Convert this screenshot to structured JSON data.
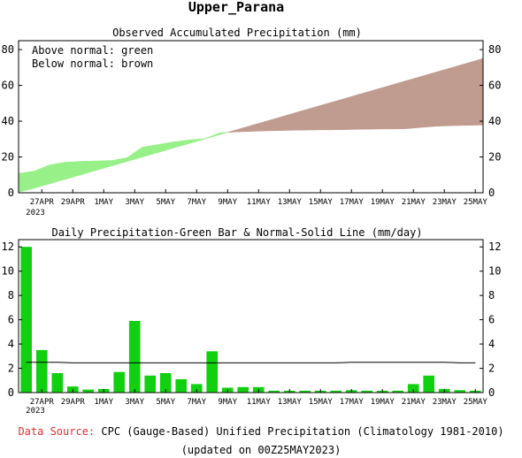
{
  "region_title": "Upper_Parana",
  "colors": {
    "above_normal": "#98f088",
    "below_normal": "#c09c90",
    "daily_bar": "#10d010",
    "normal_line": "#000000",
    "source_label": "#e03030"
  },
  "chart_data": [
    {
      "type": "area",
      "title": "Observed Accumulated Precipitation (mm)",
      "legend": [
        "Above normal: green",
        "Below normal: brown"
      ],
      "legend_position": "top-left",
      "grid": false,
      "x_tick_labels": [
        "27APR",
        "29APR",
        "1MAY",
        "3MAY",
        "5MAY",
        "7MAY",
        "9MAY",
        "11MAY",
        "13MAY",
        "15MAY",
        "17MAY",
        "19MAY",
        "21MAY",
        "23MAY",
        "25MAY"
      ],
      "x_sub_label": "2023",
      "y_ticks": [
        0,
        20,
        40,
        60,
        80
      ],
      "ylim": [
        0,
        85
      ],
      "x_days": [
        "26APR",
        "27APR",
        "28APR",
        "29APR",
        "30APR",
        "1MAY",
        "2MAY",
        "3MAY",
        "4MAY",
        "5MAY",
        "6MAY",
        "7MAY",
        "8MAY",
        "9MAY",
        "10MAY",
        "11MAY",
        "12MAY",
        "13MAY",
        "14MAY",
        "15MAY",
        "16MAY",
        "17MAY",
        "18MAY",
        "19MAY",
        "20MAY",
        "21MAY",
        "22MAY",
        "23MAY",
        "24MAY",
        "25MAY"
      ],
      "series": [
        {
          "name": "observed",
          "values": [
            12,
            15.5,
            17,
            17.5,
            17.8,
            18,
            19.5,
            25.5,
            26.9,
            28.4,
            29.5,
            30.2,
            33.5,
            34,
            34.3,
            34.6,
            34.8,
            35,
            35.1,
            35.2,
            35.3,
            35.5,
            35.6,
            35.7,
            35.8,
            36.5,
            37.2,
            37.5,
            37.7,
            37.9
          ]
        },
        {
          "name": "normal",
          "values": [
            2.5,
            5,
            7.5,
            10,
            12.5,
            15,
            17.5,
            20,
            22.5,
            25,
            27.5,
            30,
            32.5,
            35,
            37.5,
            40,
            42.5,
            45,
            47.5,
            50,
            52.5,
            55,
            57.5,
            60,
            62.5,
            65,
            67.5,
            70,
            72.5,
            75
          ]
        }
      ]
    },
    {
      "type": "bar",
      "title": "Daily Precipitation-Green Bar & Normal-Solid Line (mm/day)",
      "grid": false,
      "x_tick_labels": [
        "27APR",
        "29APR",
        "1MAY",
        "3MAY",
        "5MAY",
        "7MAY",
        "9MAY",
        "11MAY",
        "13MAY",
        "15MAY",
        "17MAY",
        "19MAY",
        "21MAY",
        "23MAY",
        "25MAY"
      ],
      "x_sub_label": "2023",
      "y_ticks": [
        0,
        2,
        4,
        6,
        8,
        10,
        12
      ],
      "ylim": [
        0,
        12.6
      ],
      "categories": [
        "26APR",
        "27APR",
        "28APR",
        "29APR",
        "30APR",
        "1MAY",
        "2MAY",
        "3MAY",
        "4MAY",
        "5MAY",
        "6MAY",
        "7MAY",
        "8MAY",
        "9MAY",
        "10MAY",
        "11MAY",
        "12MAY",
        "13MAY",
        "14MAY",
        "15MAY",
        "16MAY",
        "17MAY",
        "18MAY",
        "19MAY",
        "20MAY",
        "21MAY",
        "22MAY",
        "23MAY",
        "24MAY",
        "25MAY"
      ],
      "series": [
        {
          "name": "daily",
          "values": [
            12,
            3.5,
            1.6,
            0.5,
            0.25,
            0.3,
            1.7,
            5.9,
            1.4,
            1.6,
            1.1,
            0.7,
            3.4,
            0.4,
            0.45,
            0.45,
            0.15,
            0.15,
            0.15,
            0.15,
            0.15,
            0.2,
            0.15,
            0.15,
            0.15,
            0.7,
            1.4,
            0.3,
            0.2,
            0.15
          ]
        },
        {
          "name": "normal",
          "values": [
            2.5,
            2.5,
            2.5,
            2.45,
            2.45,
            2.45,
            2.45,
            2.45,
            2.45,
            2.45,
            2.45,
            2.45,
            2.45,
            2.45,
            2.45,
            2.45,
            2.45,
            2.45,
            2.45,
            2.45,
            2.45,
            2.5,
            2.5,
            2.5,
            2.5,
            2.5,
            2.5,
            2.5,
            2.45,
            2.45
          ]
        }
      ]
    }
  ],
  "footer": {
    "source_label": "Data Source:",
    "source_text": "CPC (Gauge-Based) Unified Precipitation (Climatology 1981-2010)",
    "updated_text": "(updated on 00Z25MAY2023)"
  }
}
